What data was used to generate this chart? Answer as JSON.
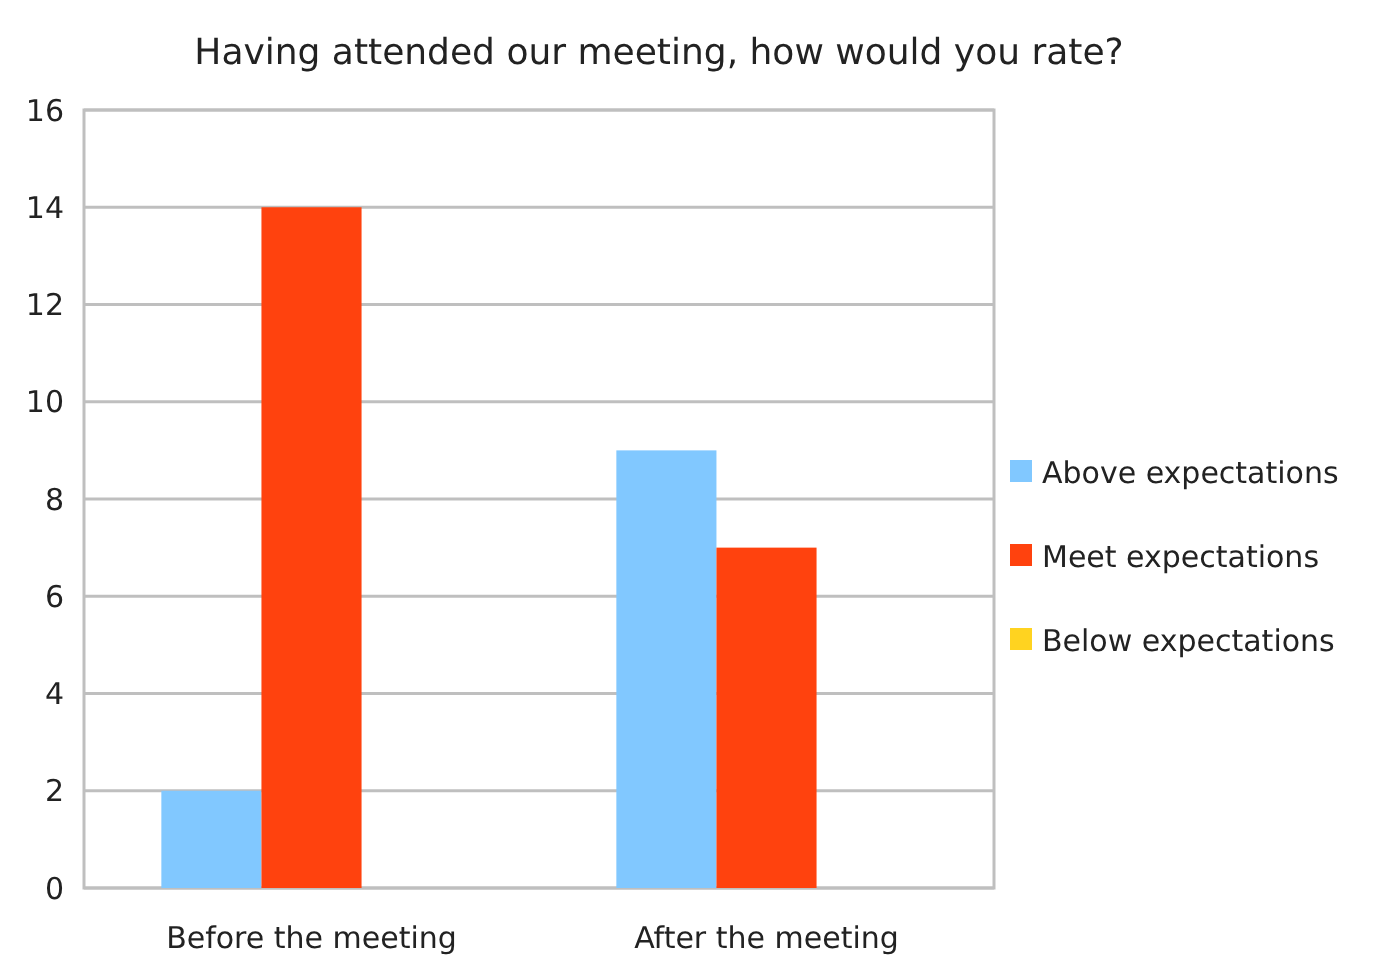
{
  "chart_data": {
    "type": "bar",
    "title": "Having attended our meeting, how would you rate?",
    "categories": [
      "Before the meeting",
      "After the meeting"
    ],
    "series": [
      {
        "name": "Above expectations",
        "color": "#81c8ff",
        "values": [
          2,
          9
        ]
      },
      {
        "name": "Meet expectations",
        "color": "#ff420e",
        "values": [
          14,
          7
        ]
      },
      {
        "name": "Below expectations",
        "color": "#ffd320",
        "values": [
          0,
          0
        ]
      }
    ],
    "ylim": [
      0,
      16
    ],
    "yticks": [
      0,
      2,
      4,
      6,
      8,
      10,
      12,
      14,
      16
    ],
    "grid": "y",
    "legend": "right"
  }
}
